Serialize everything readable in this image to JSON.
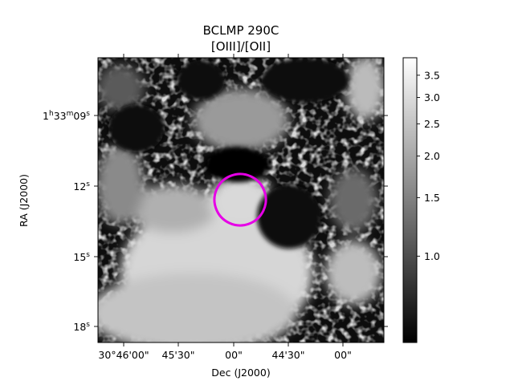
{
  "chart_data": {
    "type": "heatmap",
    "title": "BCLMP 290C",
    "subtitle": "[OIII]/[OII]",
    "xlabel": "Dec (J2000)",
    "ylabel": "RA (J2000)",
    "colormap": "gray",
    "x_ticks": [
      "30°46'00\"",
      "45'30\"",
      "00\"",
      "44'30\"",
      "00\""
    ],
    "y_ticks": [
      {
        "base": "1",
        "h": "h",
        "mid": "33",
        "m": "m",
        "sec": "09",
        "s": "s"
      },
      {
        "sec": "12",
        "s": "s"
      },
      {
        "sec": "15",
        "s": "s"
      },
      {
        "sec": "18",
        "s": "s"
      }
    ],
    "colorbar": {
      "scale": "log",
      "range": [
        0.55,
        3.95
      ],
      "ticks": [
        "3.5",
        "3.0",
        "2.5",
        "2.0",
        "1.5",
        "1.0"
      ],
      "tick_values": [
        3.5,
        3.0,
        2.5,
        2.0,
        1.5,
        1.0
      ]
    },
    "region": {
      "shape": "ellipse",
      "color": "#e600e6"
    }
  }
}
